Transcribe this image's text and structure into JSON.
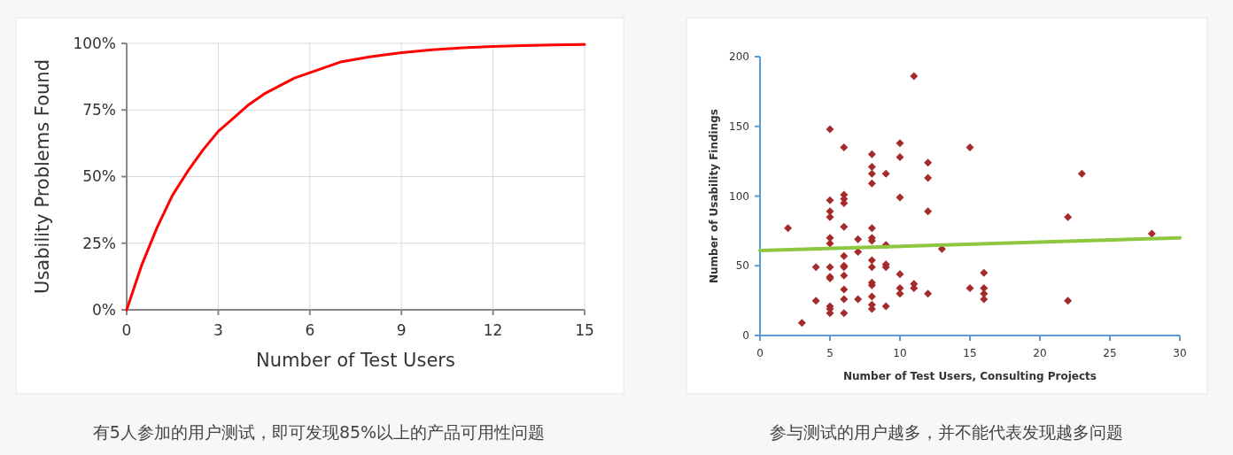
{
  "chart_data": [
    {
      "type": "line",
      "xlabel": "Number of Test Users",
      "ylabel": "Usability Problems Found",
      "color": "#ff0000",
      "marker": "none",
      "grid": true,
      "x": [
        0,
        0.5,
        1,
        1.5,
        2,
        2.5,
        3,
        3.5,
        4,
        4.5,
        5,
        5.5,
        6,
        7,
        8,
        9,
        10,
        11,
        12,
        13,
        14,
        15
      ],
      "values": [
        0,
        17,
        31,
        43,
        52,
        60,
        67,
        72,
        77,
        81,
        84,
        87,
        89,
        93,
        95,
        96.5,
        97.6,
        98.3,
        98.8,
        99.2,
        99.4,
        99.6
      ],
      "xlim": [
        0,
        15
      ],
      "xticks": [
        0,
        3,
        6,
        9,
        12,
        15
      ],
      "ylim": [
        0,
        100
      ],
      "yticks": [
        {
          "value": 0,
          "label": "0%"
        },
        {
          "value": 25,
          "label": "25%"
        },
        {
          "value": 50,
          "label": "50%"
        },
        {
          "value": 75,
          "label": "75%"
        },
        {
          "value": 100,
          "label": "100%"
        }
      ],
      "annotations": [
        "有5人参加的用户测试，即可发现85%以上的产品可用性问题"
      ]
    },
    {
      "type": "scatter",
      "xlabel": "Number of Test Users, Consulting Projects",
      "ylabel": "Number of Usability Findings",
      "marker": "diamond",
      "grid": false,
      "series": [
        {
          "color": "#a52a2a",
          "x": [
            2,
            3,
            4,
            4,
            5,
            5,
            5,
            5,
            5,
            5,
            5,
            5,
            5,
            5,
            5,
            5,
            6,
            6,
            6,
            6,
            6,
            6,
            6,
            6,
            6,
            6,
            6,
            6,
            7,
            7,
            7,
            8,
            8,
            8,
            8,
            8,
            8,
            8,
            8,
            8,
            8,
            8,
            8,
            8,
            8,
            9,
            9,
            9,
            9,
            9,
            10,
            10,
            10,
            10,
            10,
            10,
            11,
            11,
            11,
            12,
            12,
            12,
            12,
            13,
            15,
            15,
            16,
            16,
            16,
            16,
            22,
            22,
            23,
            28
          ],
          "values": [
            77,
            9,
            49,
            25,
            148,
            97,
            89,
            85,
            70,
            66,
            49,
            42,
            41,
            21,
            19,
            16,
            135,
            101,
            98,
            95,
            78,
            57,
            50,
            49,
            43,
            33,
            26,
            16,
            69,
            60,
            26,
            130,
            121,
            116,
            109,
            77,
            70,
            68,
            54,
            49,
            38,
            36,
            28,
            22,
            19,
            116,
            65,
            51,
            49,
            21,
            138,
            128,
            99,
            44,
            34,
            30,
            186,
            37,
            34,
            124,
            113,
            89,
            30,
            62,
            135,
            34,
            45,
            34,
            30,
            26,
            85,
            25,
            116,
            73
          ]
        },
        {
          "type": "line",
          "marker": "none",
          "color": "#8dc63f",
          "x": [
            0,
            30
          ],
          "values": [
            61,
            70
          ]
        }
      ],
      "xlim": [
        0,
        30
      ],
      "xticks": [
        0,
        5,
        10,
        15,
        20,
        25,
        30
      ],
      "ylim": [
        0,
        200
      ],
      "yticks": [
        0,
        50,
        100,
        150,
        200
      ],
      "annotations": [
        "参与测试的用户越多，并不能代表发现越多问题"
      ]
    }
  ]
}
